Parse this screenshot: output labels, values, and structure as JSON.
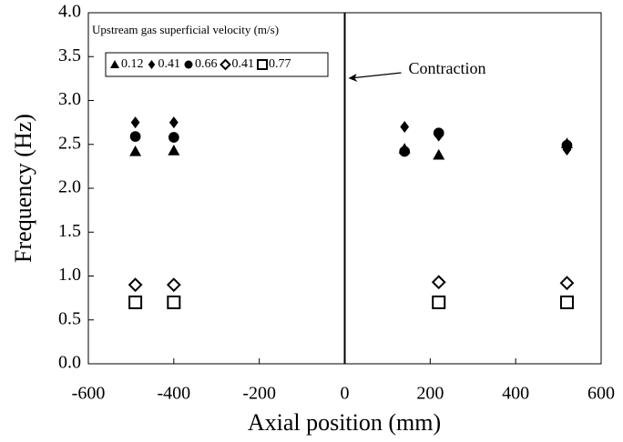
{
  "chart_data": {
    "type": "scatter",
    "xlabel": "Axial position (mm)",
    "ylabel": "Frequency (Hz)",
    "legend_title": "Upstream gas superficial velocity (m/s)",
    "annotation": {
      "text": "Contraction",
      "x": 0
    },
    "xlim": [
      -600,
      600
    ],
    "xticks": [
      -600,
      -400,
      -200,
      0,
      200,
      400,
      600
    ],
    "ylim": [
      0,
      4
    ],
    "yticks": [
      {
        "value": 0,
        "label": "0.0"
      },
      {
        "value": 0.5,
        "label": "0.5"
      },
      {
        "value": 1,
        "label": "1.0"
      },
      {
        "value": 1.5,
        "label": "1.5"
      },
      {
        "value": 2,
        "label": "2.0"
      },
      {
        "value": 2.5,
        "label": "2.5"
      },
      {
        "value": 3,
        "label": "3.0"
      },
      {
        "value": 3.5,
        "label": "3.5"
      },
      {
        "value": 4,
        "label": "4.0"
      }
    ],
    "series": [
      {
        "name": "0.12",
        "marker": "triangle",
        "color": "#000000",
        "x": [
          -490,
          -400,
          140,
          220,
          520
        ],
        "values": [
          2.42,
          2.43,
          2.45,
          2.38,
          2.51
        ]
      },
      {
        "name": "0.41",
        "marker": "diamond",
        "color": "#000000",
        "x": [
          -490,
          -400,
          140,
          220,
          520
        ],
        "values": [
          2.75,
          2.75,
          2.7,
          2.6,
          2.44
        ]
      },
      {
        "name": "0.66",
        "marker": "circle",
        "color": "#000000",
        "x": [
          -490,
          -400,
          140,
          220,
          520
        ],
        "values": [
          2.59,
          2.58,
          2.42,
          2.63,
          2.49
        ]
      },
      {
        "name": "0.41",
        "marker": "open-diamond",
        "color": "#000000",
        "x": [
          -490,
          -400,
          220,
          520
        ],
        "values": [
          0.9,
          0.9,
          0.93,
          0.92
        ]
      },
      {
        "name": "0.77",
        "marker": "open-square",
        "color": "#000000",
        "x": [
          -490,
          -400,
          220,
          520
        ],
        "values": [
          0.7,
          0.7,
          0.7,
          0.7
        ]
      }
    ]
  }
}
